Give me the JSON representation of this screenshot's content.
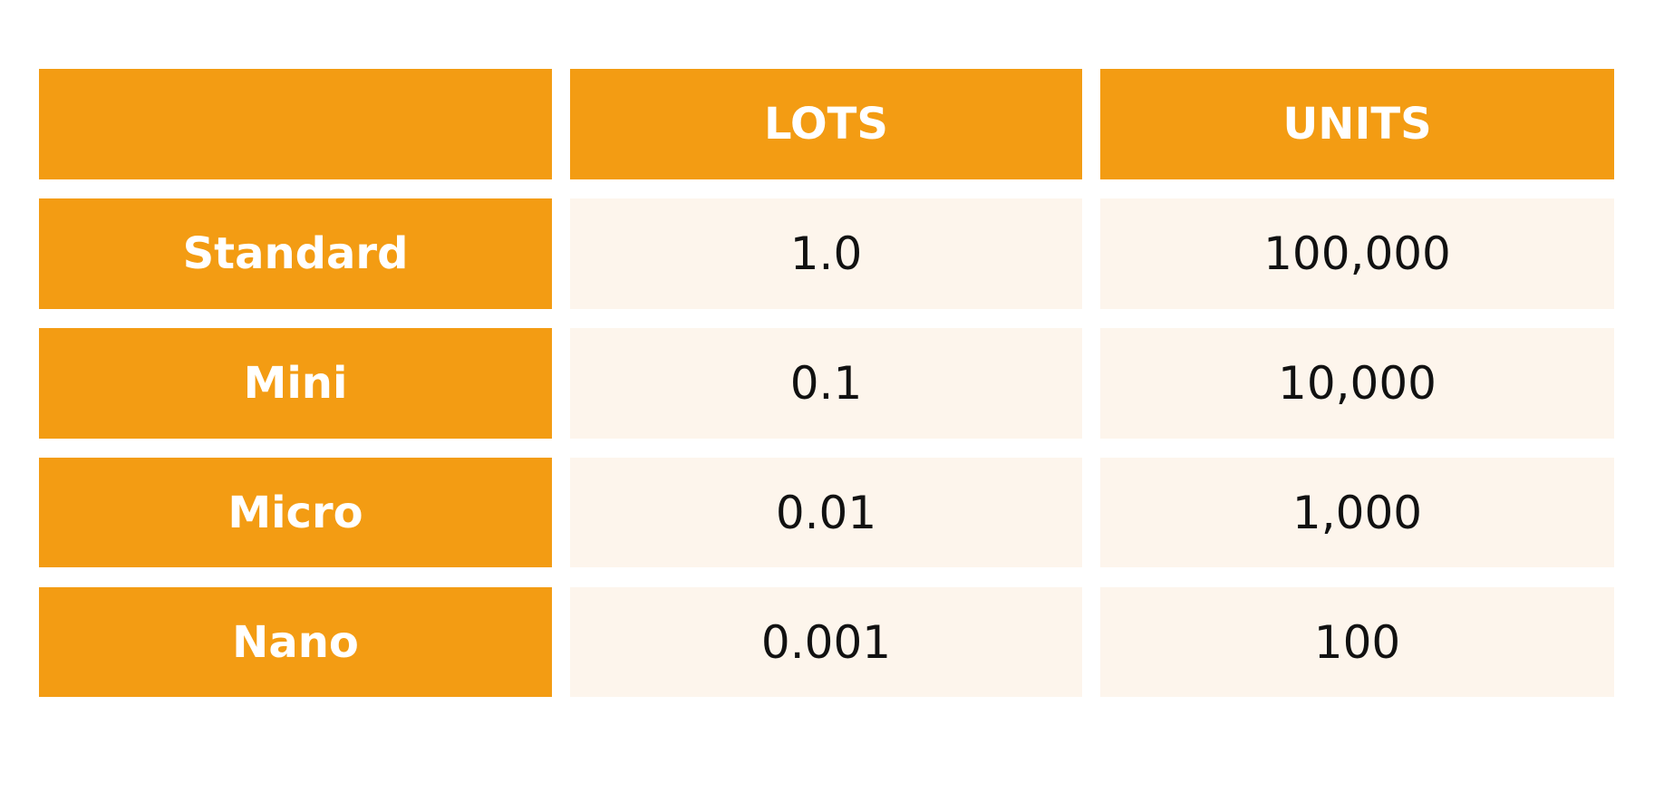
{
  "table": {
    "header": [
      "LOTS",
      "UNITS"
    ],
    "rows": [
      [
        "Standard",
        "1.0",
        "100,000"
      ],
      [
        "Mini",
        "0.1",
        "10,000"
      ],
      [
        "Micro",
        "0.01",
        "1,000"
      ],
      [
        "Nano",
        "0.001",
        "100"
      ]
    ]
  }
}
